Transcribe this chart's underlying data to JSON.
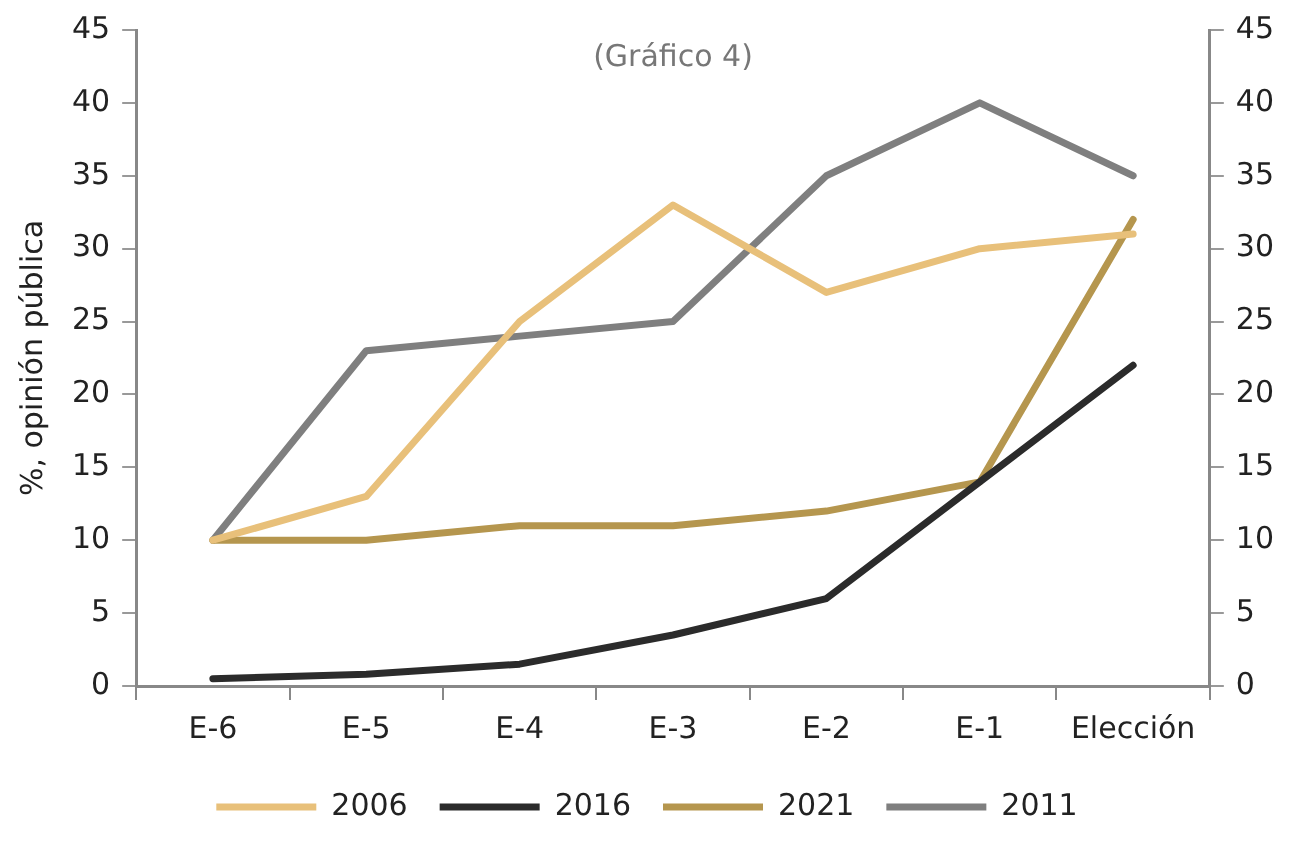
{
  "chart_data": {
    "type": "line",
    "ylabel": "%, opinión pública",
    "annotations": [
      "(Gráfico 4)"
    ],
    "categories": [
      "E-6",
      "E-5",
      "E-4",
      "E-3",
      "E-2",
      "E-1",
      "Elección"
    ],
    "series": [
      {
        "name": "2006",
        "color": "#e8c07a",
        "values": [
          10,
          13,
          25,
          33,
          27,
          30,
          31
        ]
      },
      {
        "name": "2016",
        "color": "#2b2b2b",
        "values": [
          0.5,
          0.8,
          1.5,
          3.5,
          6,
          14,
          22
        ]
      },
      {
        "name": "2021",
        "color": "#b5964e",
        "values": [
          10,
          10,
          11,
          11,
          12,
          14,
          32
        ]
      },
      {
        "name": "2011",
        "color": "#7f7f7f",
        "values": [
          10,
          23,
          24,
          25,
          35,
          40,
          35
        ]
      }
    ],
    "ylim": [
      0,
      45
    ],
    "yticks": [
      0,
      5,
      10,
      15,
      20,
      25,
      30,
      35,
      40,
      45
    ],
    "y2lim": [
      0,
      45
    ],
    "y2ticks": [
      0,
      5,
      10,
      15,
      20,
      25,
      30,
      35,
      40,
      45
    ],
    "grid": false,
    "legend": "bottom",
    "marker": "none",
    "line_style": "solid"
  }
}
